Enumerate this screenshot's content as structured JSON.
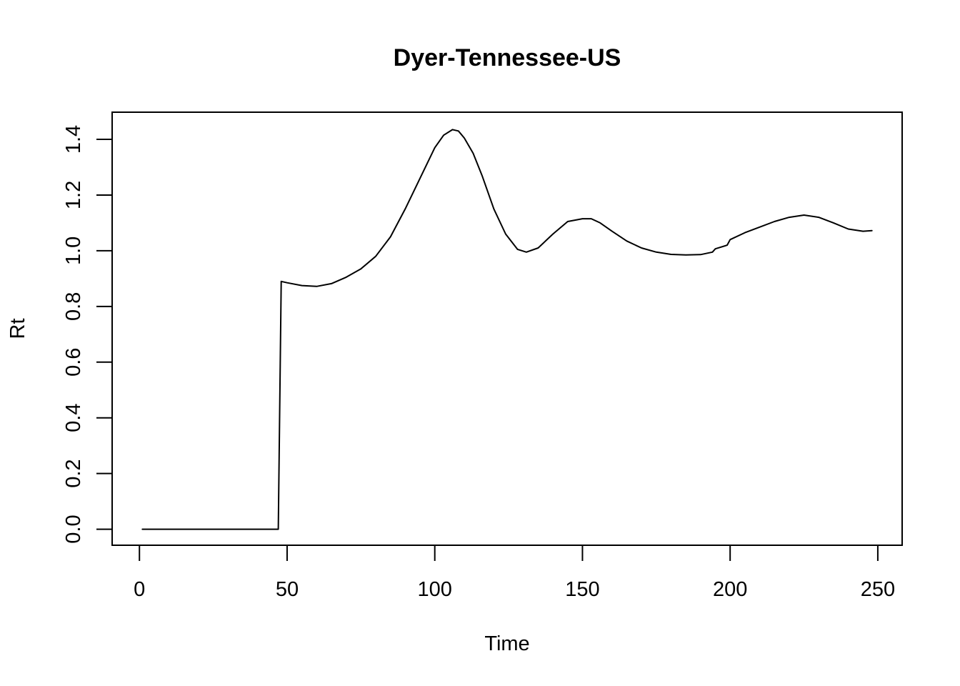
{
  "chart_data": {
    "type": "line",
    "title": "Dyer-Tennessee-US",
    "xlabel": "Time",
    "ylabel": "Rt",
    "xlim": [
      -9,
      258
    ],
    "ylim": [
      -0.055,
      1.495
    ],
    "xticks": [
      0,
      50,
      100,
      150,
      200,
      250
    ],
    "xtick_labels": [
      "0",
      "50",
      "100",
      "150",
      "200",
      "250"
    ],
    "yticks": [
      0.0,
      0.2,
      0.4,
      0.6,
      0.8,
      1.0,
      1.2,
      1.4
    ],
    "ytick_labels": [
      "0.0",
      "0.2",
      "0.4",
      "0.6",
      "0.8",
      "1.0",
      "1.2",
      "1.4"
    ],
    "grid": false,
    "series": [
      {
        "color": "#000000",
        "x": [
          1,
          47,
          48,
          50,
          55,
          60,
          65,
          70,
          75,
          80,
          85,
          90,
          95,
          100,
          103,
          106,
          108,
          110,
          113,
          116,
          120,
          124,
          128,
          131,
          135,
          140,
          145,
          150,
          153,
          156,
          160,
          165,
          170,
          175,
          180,
          185,
          190,
          194,
          195,
          199,
          200,
          205,
          210,
          215,
          220,
          225,
          230,
          235,
          240,
          245,
          248
        ],
        "y": [
          0.0,
          0.0,
          0.89,
          0.885,
          0.875,
          0.872,
          0.882,
          0.905,
          0.935,
          0.98,
          1.05,
          1.15,
          1.26,
          1.37,
          1.415,
          1.435,
          1.43,
          1.405,
          1.35,
          1.27,
          1.15,
          1.06,
          1.005,
          0.995,
          1.01,
          1.06,
          1.105,
          1.115,
          1.115,
          1.1,
          1.07,
          1.035,
          1.01,
          0.995,
          0.987,
          0.985,
          0.986,
          0.995,
          1.007,
          1.02,
          1.04,
          1.065,
          1.085,
          1.105,
          1.12,
          1.128,
          1.12,
          1.1,
          1.078,
          1.07,
          1.072
        ]
      }
    ]
  }
}
